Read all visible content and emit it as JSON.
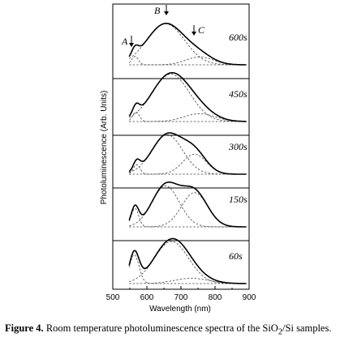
{
  "chart_data": {
    "type": "line",
    "xlabel": "Wavelength (nm)",
    "ylabel": "Photoluminescence (Arb. Units)",
    "xlim": [
      500,
      900
    ],
    "xticks": [
      500,
      600,
      700,
      800,
      900
    ],
    "yticks_shown": false,
    "peak_markers": [
      "A",
      "B",
      "C"
    ],
    "panels": [
      {
        "label": "600s",
        "components": [
          {
            "center": 565,
            "width": 10,
            "amp": 0.16
          },
          {
            "center": 655,
            "width": 55,
            "amp": 0.78
          },
          {
            "center": 755,
            "width": 40,
            "amp": 0.15
          }
        ]
      },
      {
        "label": "450s",
        "components": [
          {
            "center": 568,
            "width": 10,
            "amp": 0.18
          },
          {
            "center": 670,
            "width": 55,
            "amp": 0.9
          },
          {
            "center": 755,
            "width": 45,
            "amp": 0.15
          }
        ]
      },
      {
        "label": "300s",
        "components": [
          {
            "center": 570,
            "width": 10,
            "amp": 0.18
          },
          {
            "center": 660,
            "width": 45,
            "amp": 0.75
          },
          {
            "center": 740,
            "width": 35,
            "amp": 0.38
          }
        ]
      },
      {
        "label": "150s",
        "components": [
          {
            "center": 565,
            "width": 11,
            "amp": 0.35
          },
          {
            "center": 655,
            "width": 40,
            "amp": 0.78
          },
          {
            "center": 740,
            "width": 38,
            "amp": 0.65
          }
        ]
      },
      {
        "label": "60s",
        "components": [
          {
            "center": 563,
            "width": 14,
            "amp": 0.55
          },
          {
            "center": 672,
            "width": 50,
            "amp": 0.8
          },
          {
            "center": 730,
            "width": 50,
            "amp": 0.1
          }
        ]
      }
    ]
  },
  "caption": {
    "figure_label": "Figure 4.",
    "text": "Room temperature photoluminescence spectra of the SiO",
    "subscript": "2",
    "text_end": "/Si samples."
  }
}
